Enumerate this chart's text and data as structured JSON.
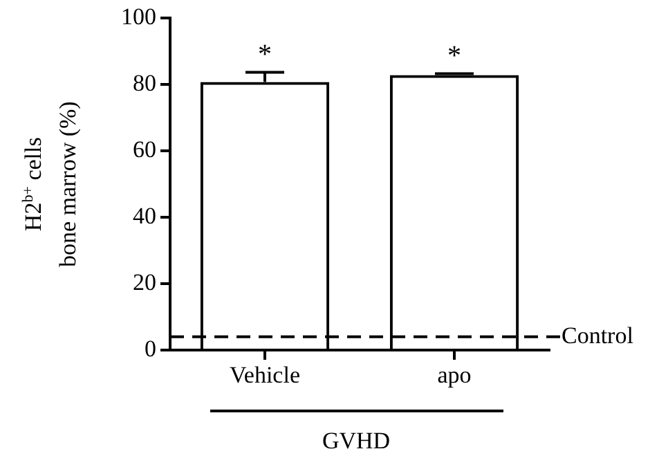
{
  "chart_data": {
    "type": "bar",
    "xlabel": "GVHD",
    "ylabel": "H2$^{b+}$ cells\nbone marrow (%)",
    "categories": [
      "Vehicle",
      "apo"
    ],
    "values": [
      80.8,
      82.9
    ],
    "errors": [
      2.9,
      0.4
    ],
    "color": "#000000",
    "ylim": [
      0,
      100
    ],
    "yticks": [
      0,
      20,
      40,
      60,
      80,
      100
    ],
    "grid": false,
    "legend": false,
    "ref_lines": [
      {
        "axis": "y",
        "value": 4,
        "label": "Control",
        "line_style": "dashed"
      }
    ],
    "annotations": [
      "*",
      "*"
    ]
  }
}
